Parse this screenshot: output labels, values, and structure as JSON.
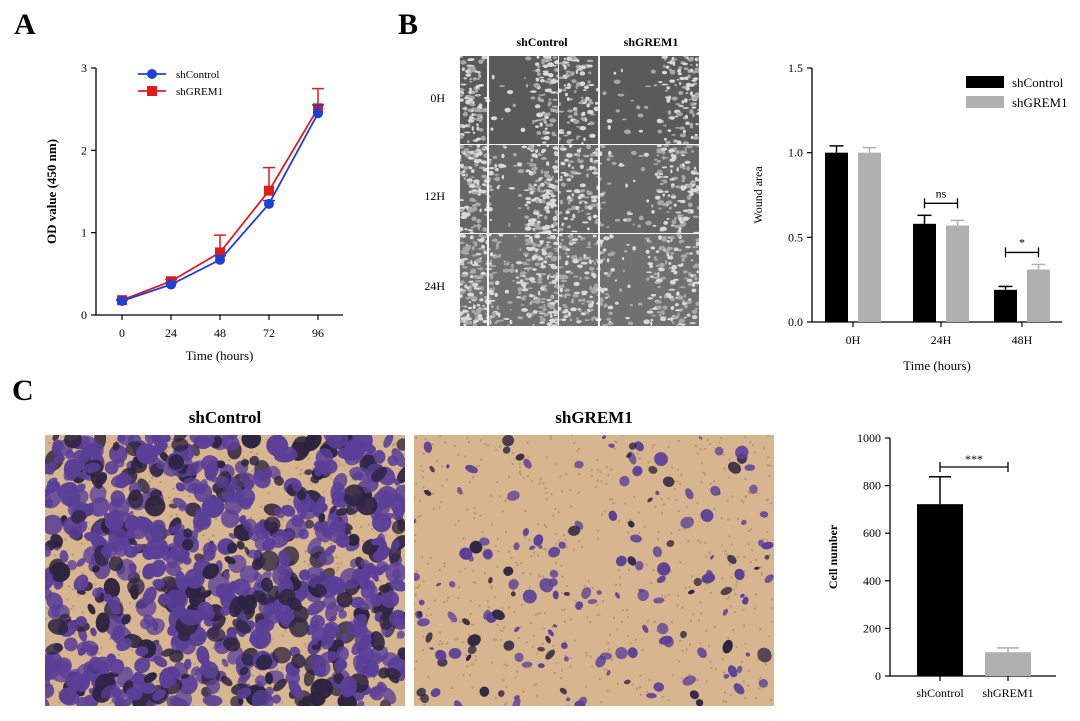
{
  "panels": {
    "a": "A",
    "b": "B",
    "c": "C"
  },
  "colors": {
    "shControl_line": "#1f3fd6",
    "shGREM1_line": "#e01b1b",
    "bar_black": "#000000",
    "bar_grey": "#b0b0b0",
    "stain_purple": "#5a3f98",
    "stain_background": "#d7b58f",
    "scratch_gray": "#5f5f5f"
  },
  "wound_images": {
    "col_labels": [
      "shControl",
      "shGREM1"
    ],
    "row_labels": [
      "0H",
      "12H",
      "24H"
    ]
  },
  "transwell_images": {
    "titles": [
      "shControl",
      "shGREM1"
    ]
  },
  "chart_data": [
    {
      "type": "line",
      "xlabel": "Time (hours)",
      "ylabel": "OD value (450 nm)",
      "x": [
        0,
        24,
        48,
        72,
        96
      ],
      "xticks": [
        "0",
        "24",
        "48",
        "72",
        "96"
      ],
      "yticks": [
        "0",
        "1",
        "2",
        "3"
      ],
      "ylim": [
        0,
        3
      ],
      "legend_position": "top-left",
      "series": [
        {
          "name": "shControl",
          "values": [
            0.17,
            0.37,
            0.67,
            1.35,
            2.45
          ],
          "error": [
            0.01,
            0.02,
            0.05,
            0.04,
            0.1
          ]
        },
        {
          "name": "shGREM1",
          "values": [
            0.18,
            0.41,
            0.76,
            1.51,
            2.51
          ],
          "error": [
            0.01,
            0.02,
            0.21,
            0.28,
            0.24
          ]
        }
      ]
    },
    {
      "type": "bar",
      "xlabel": "Time (hours)",
      "ylabel": "Wound area",
      "categories": [
        "0H",
        "24H",
        "48H"
      ],
      "yticks": [
        "0.0",
        "0.5",
        "1.0",
        "1.5"
      ],
      "ylim": [
        0,
        1.5
      ],
      "legend_position": "top-right",
      "series": [
        {
          "name": "shControl",
          "values": [
            1.0,
            0.58,
            0.19
          ],
          "error": [
            0.04,
            0.05,
            0.02
          ]
        },
        {
          "name": "shGREM1",
          "values": [
            1.0,
            0.57,
            0.31
          ],
          "error": [
            0.03,
            0.03,
            0.03
          ]
        }
      ],
      "annotations": [
        {
          "text": "ns",
          "category": "24H"
        },
        {
          "text": "*",
          "category": "48H"
        }
      ]
    },
    {
      "type": "bar",
      "xlabel": "",
      "ylabel": "Cell number",
      "categories": [
        "shControl",
        "shGREM1"
      ],
      "yticks": [
        "0",
        "200",
        "400",
        "600",
        "800",
        "1000"
      ],
      "ylim": [
        0,
        1000
      ],
      "values": [
        722,
        100
      ],
      "error": [
        115,
        18
      ],
      "annotations": [
        {
          "text": "***"
        }
      ]
    }
  ]
}
